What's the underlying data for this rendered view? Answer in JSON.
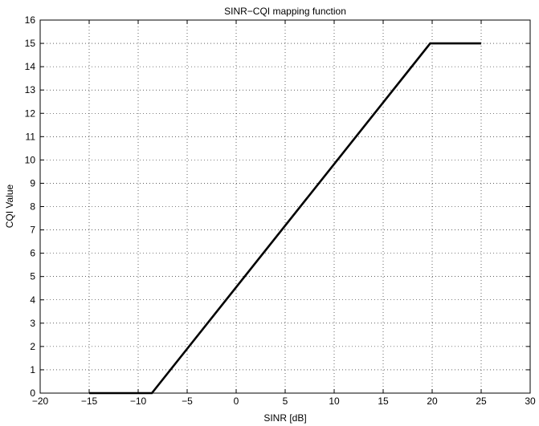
{
  "chart_data": {
    "type": "line",
    "title": "SINR−CQI mapping function",
    "xlabel": "SINR [dB]",
    "ylabel": "CQI Value",
    "xlim": [
      -20,
      30
    ],
    "ylim": [
      0,
      16
    ],
    "grid": true,
    "xticks": [
      -20,
      -15,
      -10,
      -5,
      0,
      5,
      10,
      15,
      20,
      25,
      30
    ],
    "yticks": [
      0,
      1,
      2,
      3,
      4,
      5,
      6,
      7,
      8,
      9,
      10,
      11,
      12,
      13,
      14,
      15,
      16
    ],
    "xtick_labels": [
      "−20",
      "−15",
      "−10",
      "−5",
      "0",
      "5",
      "10",
      "15",
      "20",
      "25",
      "30"
    ],
    "ytick_labels": [
      "0",
      "1",
      "2",
      "3",
      "4",
      "5",
      "6",
      "7",
      "8",
      "9",
      "10",
      "11",
      "12",
      "13",
      "14",
      "15",
      "16"
    ],
    "series": [
      {
        "color": "#000000",
        "x": [
          -15,
          -8.6,
          19.8,
          25
        ],
        "y": [
          0,
          0,
          15,
          15
        ]
      }
    ]
  }
}
